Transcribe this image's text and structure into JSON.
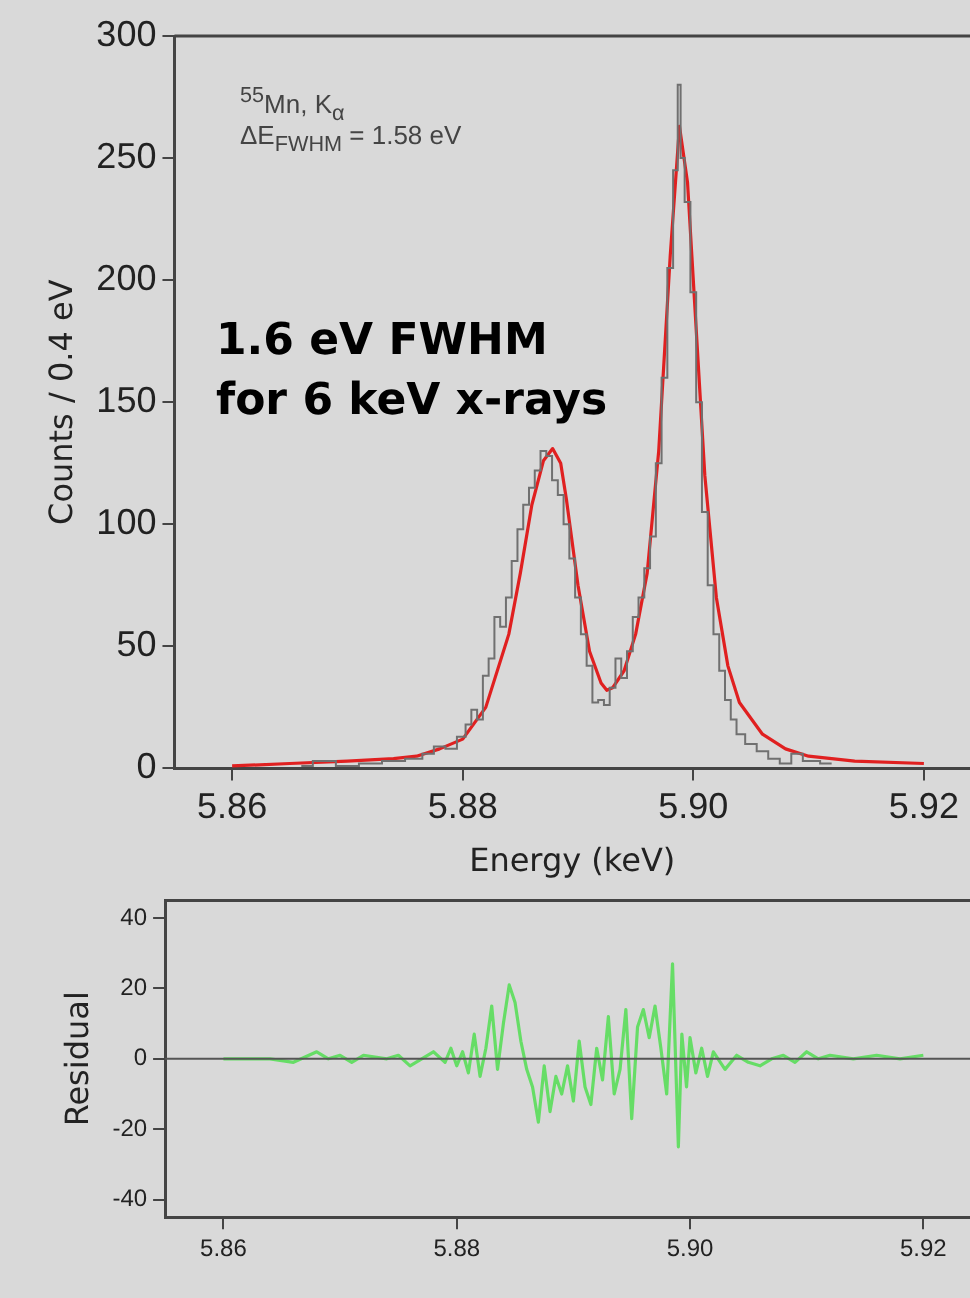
{
  "chart_data": [
    {
      "type": "line",
      "xlabel": "Energy (keV)",
      "ylabel": "Counts / 0.4 eV",
      "xlim": [
        5.855,
        5.924
      ],
      "ylim": [
        0,
        300
      ],
      "xticks": [
        5.86,
        5.88,
        {
          "value": 5.9,
          "label": "5.90"
        },
        5.92
      ],
      "yticks": [
        0,
        50,
        100,
        150,
        200,
        250,
        300
      ],
      "annotations": [
        "$^{55}$Mn, K$_{α}$",
        "ΔE$_{FWHM}$ = 1.58 eV",
        "1.6 eV FWHM for 6 keV x-rays"
      ],
      "series": [
        {
          "type": "step",
          "color": "#707070",
          "x": [
            5.866,
            5.868,
            5.87,
            5.872,
            5.874,
            5.876,
            5.877,
            5.878,
            5.879,
            5.88,
            5.8805,
            5.881,
            5.8815,
            5.882,
            5.8825,
            5.883,
            5.8835,
            5.884,
            5.8845,
            5.885,
            5.8855,
            5.886,
            5.8865,
            5.887,
            5.8875,
            5.888,
            5.8885,
            5.889,
            5.8895,
            5.89,
            5.8905,
            5.891,
            5.8915,
            5.892,
            5.8925,
            5.893,
            5.8935,
            5.894,
            5.8945,
            5.895,
            5.8955,
            5.896,
            5.8965,
            5.897,
            5.8975,
            5.898,
            5.8985,
            5.8988,
            5.899,
            5.8995,
            5.9,
            5.9005,
            5.901,
            5.9015,
            5.902,
            5.9025,
            5.903,
            5.9035,
            5.904,
            5.905,
            5.906,
            5.907,
            5.908,
            5.909,
            5.91,
            5.912
          ],
          "values": [
            1,
            3,
            1,
            2,
            3,
            4,
            6,
            9,
            8,
            13,
            18,
            24,
            20,
            38,
            45,
            62,
            58,
            70,
            85,
            98,
            108,
            115,
            122,
            130,
            128,
            118,
            112,
            100,
            86,
            70,
            55,
            42,
            27,
            28,
            26,
            33,
            45,
            37,
            48,
            62,
            70,
            82,
            95,
            125,
            160,
            205,
            245,
            280,
            250,
            232,
            195,
            150,
            105,
            75,
            55,
            40,
            28,
            20,
            14,
            10,
            7,
            4,
            2,
            6,
            3,
            2
          ]
        },
        {
          "type": "line",
          "color": "#e02020",
          "x": [
            5.86,
            5.865,
            5.87,
            5.874,
            5.876,
            5.878,
            5.88,
            5.882,
            5.884,
            5.885,
            5.886,
            5.887,
            5.8878,
            5.8885,
            5.889,
            5.89,
            5.891,
            5.892,
            5.8925,
            5.893,
            5.894,
            5.895,
            5.896,
            5.897,
            5.898,
            5.8988,
            5.8995,
            5.9,
            5.901,
            5.902,
            5.903,
            5.904,
            5.906,
            5.908,
            5.91,
            5.914,
            5.92
          ],
          "values": [
            1,
            2,
            3,
            4,
            5,
            8,
            12,
            25,
            55,
            80,
            108,
            126,
            131,
            125,
            110,
            75,
            48,
            35,
            32,
            33,
            40,
            55,
            80,
            130,
            210,
            263,
            240,
            200,
            120,
            70,
            42,
            27,
            14,
            8,
            5,
            3,
            2
          ]
        }
      ]
    },
    {
      "type": "line",
      "ylabel": "Residual",
      "xlim": [
        5.855,
        5.924
      ],
      "ylim": [
        -45,
        45
      ],
      "xticks": [
        5.86,
        5.88,
        {
          "value": 5.9,
          "label": "5.90"
        },
        5.92
      ],
      "yticks": [
        -40,
        -20,
        0,
        20,
        40
      ],
      "ref_lines": [
        {
          "axis": "y",
          "value": 0,
          "color": "#555555"
        }
      ],
      "series": [
        {
          "color": "#66dd66",
          "x": [
            5.86,
            5.864,
            5.866,
            5.868,
            5.869,
            5.87,
            5.871,
            5.872,
            5.874,
            5.875,
            5.876,
            5.877,
            5.878,
            5.879,
            5.8795,
            5.88,
            5.8805,
            5.881,
            5.8815,
            5.882,
            5.8825,
            5.883,
            5.8835,
            5.884,
            5.8845,
            5.885,
            5.8855,
            5.886,
            5.8865,
            5.887,
            5.8875,
            5.888,
            5.8885,
            5.889,
            5.8895,
            5.89,
            5.8905,
            5.891,
            5.8915,
            5.892,
            5.8925,
            5.893,
            5.8935,
            5.894,
            5.8945,
            5.895,
            5.8955,
            5.896,
            5.8965,
            5.897,
            5.8975,
            5.898,
            5.8985,
            5.899,
            5.8993,
            5.8997,
            5.9,
            5.9005,
            5.901,
            5.9015,
            5.902,
            5.903,
            5.904,
            5.905,
            5.906,
            5.907,
            5.908,
            5.909,
            5.91,
            5.911,
            5.912,
            5.914,
            5.916,
            5.918,
            5.92
          ],
          "values": [
            0,
            0,
            -1,
            2,
            0,
            1,
            -1,
            1,
            0,
            1,
            -2,
            0,
            2,
            -1,
            3,
            -2,
            2,
            -4,
            7,
            -5,
            3,
            15,
            -3,
            10,
            21,
            16,
            5,
            -3,
            -8,
            -18,
            -2,
            -15,
            -5,
            -10,
            -2,
            -12,
            5,
            -8,
            -13,
            3,
            -6,
            12,
            -10,
            -3,
            14,
            -17,
            9,
            14,
            6,
            15,
            3,
            -10,
            27,
            -25,
            7,
            -8,
            6,
            -4,
            3,
            -5,
            2,
            -3,
            1,
            -1,
            -2,
            0,
            1,
            -1,
            2,
            0,
            1,
            0,
            1,
            0,
            1
          ]
        }
      ]
    }
  ]
}
